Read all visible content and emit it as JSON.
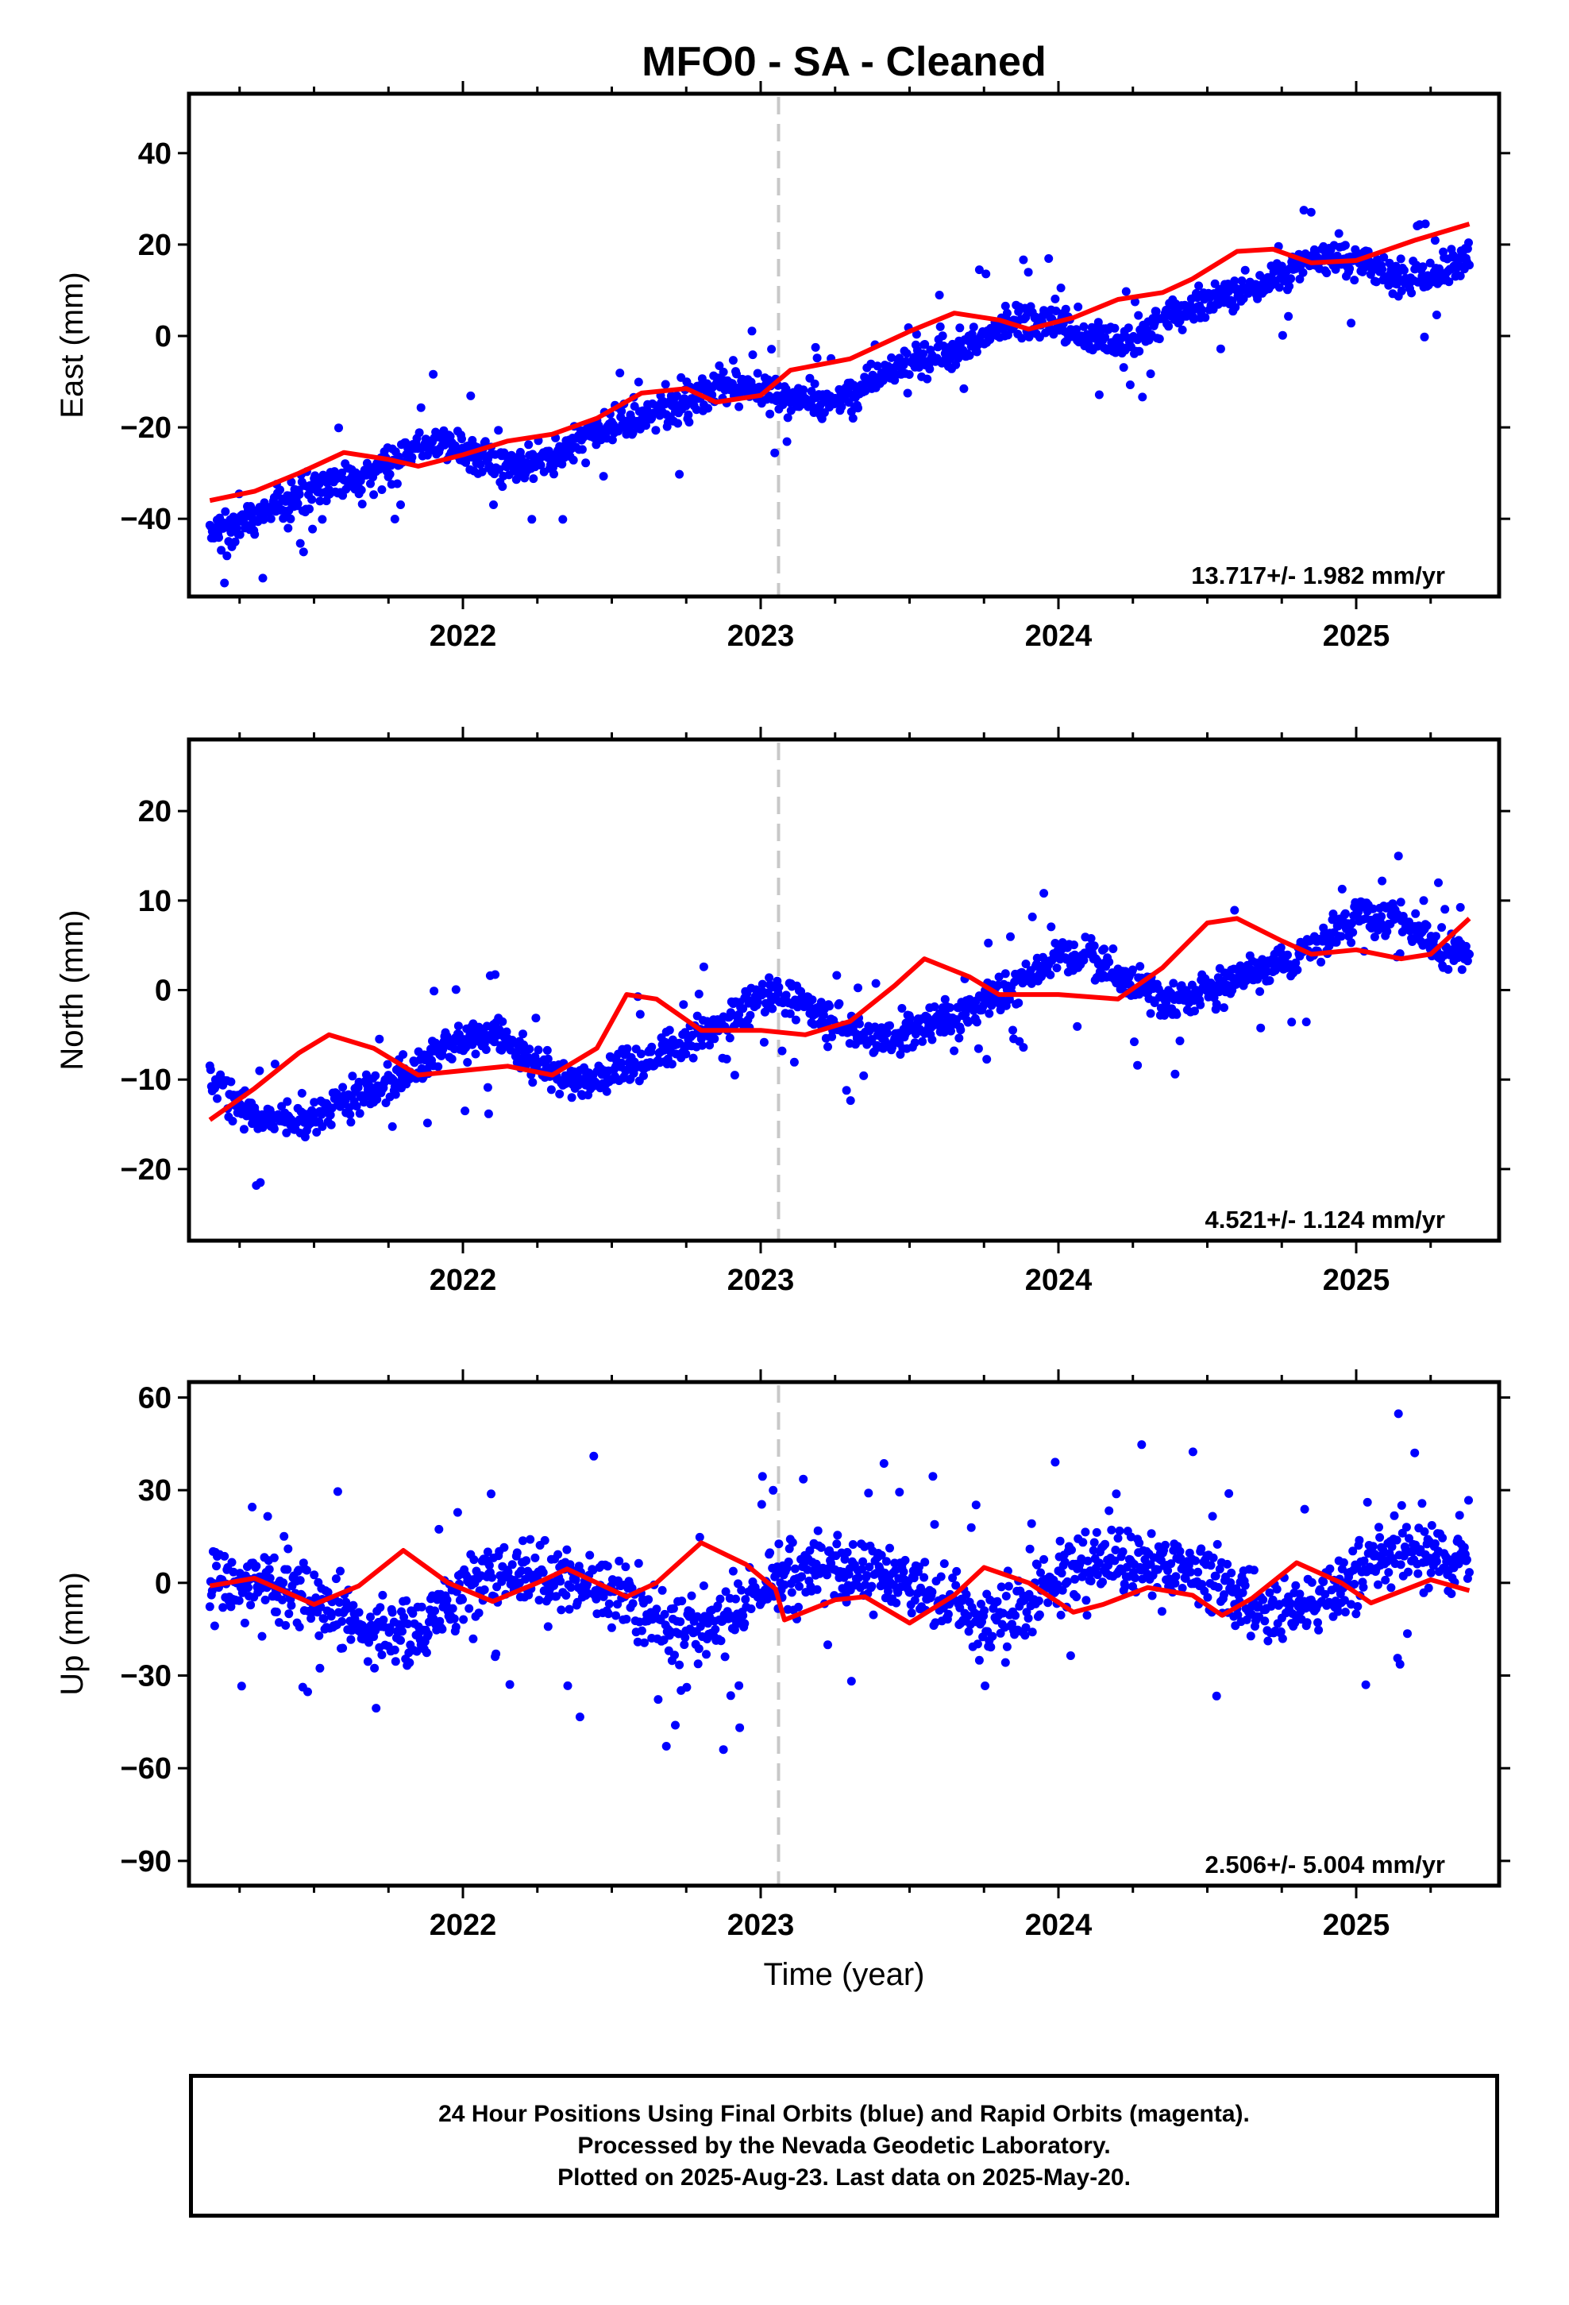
{
  "title": "MFO0  - SA - Cleaned",
  "xlabel": "Time (year)",
  "colors": {
    "points": "#0000ff",
    "fit": "#ff0000",
    "divider": "#c8c8c8",
    "frame": "#000000"
  },
  "footer": [
    "24 Hour Positions Using Final Orbits (blue) and Rapid Orbits (magenta).",
    "Processed by the Nevada Geodetic Laboratory.",
    "Plotted on 2025-Aug-23. Last data on 2025-May-20."
  ],
  "chart_data": [
    {
      "type": "scatter",
      "component": "east",
      "ylabel": "East (mm)",
      "rate_text": "13.717+/- 1.982 mm/yr",
      "x_range": [
        2021.08,
        2025.48
      ],
      "ylim": [
        -57,
        53
      ],
      "xticks": [
        2022,
        2023,
        2024,
        2025
      ],
      "yticks": [
        -40,
        -20,
        0,
        20,
        40
      ],
      "divider_x": 2023.06,
      "data_start": 2021.15,
      "data_end": 2025.38,
      "rate": 13.717,
      "anchor": [
        2023.0,
        -13
      ],
      "seasonal": [
        {
          "amp": 3.6,
          "period": 1.0,
          "phase": 2.83
        },
        {
          "amp": 1.6,
          "period": 0.5,
          "phase": 2.42
        }
      ],
      "noise": 5.0,
      "outlier_amp": 14,
      "fit": [
        [
          2021.15,
          -36
        ],
        [
          2021.3,
          -34
        ],
        [
          2021.45,
          -30
        ],
        [
          2021.6,
          -25.5
        ],
        [
          2021.75,
          -27
        ],
        [
          2021.85,
          -28.5
        ],
        [
          2022.0,
          -26
        ],
        [
          2022.15,
          -23
        ],
        [
          2022.3,
          -21.5
        ],
        [
          2022.45,
          -18
        ],
        [
          2022.6,
          -12.5
        ],
        [
          2022.75,
          -11.5
        ],
        [
          2022.85,
          -14.5
        ],
        [
          2023.0,
          -13
        ],
        [
          2023.1,
          -7.5
        ],
        [
          2023.3,
          -5
        ],
        [
          2023.5,
          1
        ],
        [
          2023.65,
          5
        ],
        [
          2023.8,
          3.5
        ],
        [
          2023.9,
          1.5
        ],
        [
          2024.05,
          4
        ],
        [
          2024.2,
          8
        ],
        [
          2024.35,
          9.5
        ],
        [
          2024.45,
          12.5
        ],
        [
          2024.6,
          18.5
        ],
        [
          2024.72,
          19
        ],
        [
          2024.85,
          16
        ],
        [
          2025.0,
          16.5
        ],
        [
          2025.2,
          21
        ],
        [
          2025.38,
          24.5
        ]
      ]
    },
    {
      "type": "scatter",
      "component": "north",
      "ylabel": "North (mm)",
      "rate_text": "4.521+/- 1.124 mm/yr",
      "x_range": [
        2021.08,
        2025.48
      ],
      "ylim": [
        -28,
        28
      ],
      "xticks": [
        2022,
        2023,
        2024,
        2025
      ],
      "yticks": [
        -20,
        -10,
        0,
        10,
        20
      ],
      "divider_x": 2023.06,
      "data_start": 2021.15,
      "data_end": 2025.38,
      "rate": 4.521,
      "anchor": [
        2023.0,
        -4.5
      ],
      "seasonal": [
        {
          "amp": 3.0,
          "period": 1.0,
          "phase": 1.57
        },
        {
          "amp": 0.8,
          "period": 0.5,
          "phase": 0.5
        }
      ],
      "noise": 2.6,
      "outlier_amp": 8,
      "fit": [
        [
          2021.15,
          -14.5
        ],
        [
          2021.3,
          -11
        ],
        [
          2021.45,
          -7
        ],
        [
          2021.55,
          -5
        ],
        [
          2021.7,
          -6.5
        ],
        [
          2021.85,
          -9.5
        ],
        [
          2022.0,
          -9
        ],
        [
          2022.15,
          -8.5
        ],
        [
          2022.3,
          -9.5
        ],
        [
          2022.45,
          -6.5
        ],
        [
          2022.55,
          -0.5
        ],
        [
          2022.65,
          -1
        ],
        [
          2022.8,
          -4.5
        ],
        [
          2023.0,
          -4.5
        ],
        [
          2023.15,
          -5
        ],
        [
          2023.3,
          -3.5
        ],
        [
          2023.45,
          0.5
        ],
        [
          2023.55,
          3.5
        ],
        [
          2023.7,
          1.5
        ],
        [
          2023.8,
          -0.5
        ],
        [
          2024.0,
          -0.5
        ],
        [
          2024.2,
          -1
        ],
        [
          2024.35,
          2.5
        ],
        [
          2024.5,
          7.5
        ],
        [
          2024.6,
          8
        ],
        [
          2024.75,
          5.5
        ],
        [
          2024.85,
          4
        ],
        [
          2025.0,
          4.5
        ],
        [
          2025.15,
          3.5
        ],
        [
          2025.25,
          4
        ],
        [
          2025.38,
          8
        ]
      ]
    },
    {
      "type": "scatter",
      "component": "up",
      "ylabel": "Up (mm)",
      "rate_text": "2.506+/- 5.004 mm/yr",
      "x_range": [
        2021.08,
        2025.48
      ],
      "ylim": [
        -98,
        65
      ],
      "xticks": [
        2022,
        2023,
        2024,
        2025
      ],
      "yticks": [
        -90,
        -60,
        -30,
        0,
        30,
        60
      ],
      "divider_x": 2023.06,
      "data_start": 2021.15,
      "data_end": 2025.38,
      "rate": 2.506,
      "anchor": [
        2023.2,
        -3
      ],
      "seasonal": [
        {
          "amp": 9.0,
          "period": 1.0,
          "phase": 0.0
        },
        {
          "amp": 2.0,
          "period": 0.5,
          "phase": 1.0
        }
      ],
      "noise": 14.0,
      "outlier_amp": 40,
      "fit": [
        [
          2021.15,
          -1
        ],
        [
          2021.3,
          1.5
        ],
        [
          2021.5,
          -7
        ],
        [
          2021.65,
          -1
        ],
        [
          2021.8,
          10.5
        ],
        [
          2021.95,
          0
        ],
        [
          2022.1,
          -6
        ],
        [
          2022.25,
          0
        ],
        [
          2022.35,
          4.5
        ],
        [
          2022.55,
          -4.5
        ],
        [
          2022.65,
          0
        ],
        [
          2022.8,
          13
        ],
        [
          2022.95,
          6
        ],
        [
          2023.05,
          -2
        ],
        [
          2023.08,
          -12
        ],
        [
          2023.25,
          -5.5
        ],
        [
          2023.35,
          -4.5
        ],
        [
          2023.5,
          -13
        ],
        [
          2023.65,
          -4
        ],
        [
          2023.75,
          5
        ],
        [
          2023.9,
          0
        ],
        [
          2024.05,
          -9.5
        ],
        [
          2024.15,
          -7
        ],
        [
          2024.3,
          -1.5
        ],
        [
          2024.45,
          -4
        ],
        [
          2024.55,
          -10.5
        ],
        [
          2024.65,
          -5
        ],
        [
          2024.8,
          6.5
        ],
        [
          2024.95,
          0
        ],
        [
          2025.05,
          -6.5
        ],
        [
          2025.25,
          1
        ],
        [
          2025.38,
          -2.5
        ]
      ]
    }
  ]
}
